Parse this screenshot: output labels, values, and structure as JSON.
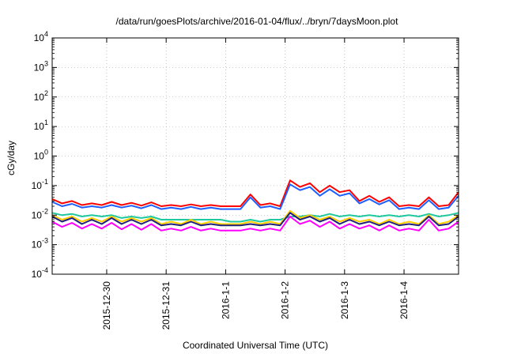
{
  "chart_data": {
    "type": "line",
    "title": "/data/run/goesPlots/archive/2016-01-04/flux/../bryn/7daysMoon.plot",
    "xlabel": "Coordinated Universal Time (UTC)",
    "ylabel": "cGy/day",
    "yscale": "log",
    "ylim": [
      0.0001,
      10000
    ],
    "xlim": [
      "2015-12-29T02:00",
      "2016-01-04T22:00"
    ],
    "grid": true,
    "legend": "none",
    "y_ticks": [
      {
        "base": "10",
        "exp": "-4"
      },
      {
        "base": "10",
        "exp": "-3"
      },
      {
        "base": "10",
        "exp": "-2"
      },
      {
        "base": "10",
        "exp": "-1"
      },
      {
        "base": "10",
        "exp": "0"
      },
      {
        "base": "10",
        "exp": "1"
      },
      {
        "base": "10",
        "exp": "2"
      },
      {
        "base": "10",
        "exp": "3"
      },
      {
        "base": "10",
        "exp": "4"
      }
    ],
    "x_ticks": [
      {
        "date": "2015-12-30",
        "label": "2015-12-30"
      },
      {
        "date": "2015-12-31",
        "label": "2015-12-31"
      },
      {
        "date": "2016-01-01",
        "label": "2016-1-1"
      },
      {
        "date": "2016-01-02",
        "label": "2016-1-2"
      },
      {
        "date": "2016-01-03",
        "label": "2016-1-3"
      },
      {
        "date": "2016-01-04",
        "label": "2016-1-4"
      }
    ],
    "x": [
      "2015-12-29T02:00",
      "2015-12-29T06:00",
      "2015-12-29T10:00",
      "2015-12-29T14:00",
      "2015-12-29T18:00",
      "2015-12-29T22:00",
      "2015-12-30T02:00",
      "2015-12-30T06:00",
      "2015-12-30T10:00",
      "2015-12-30T14:00",
      "2015-12-30T18:00",
      "2015-12-30T22:00",
      "2015-12-31T02:00",
      "2015-12-31T06:00",
      "2015-12-31T10:00",
      "2015-12-31T14:00",
      "2015-12-31T18:00",
      "2015-12-31T22:00",
      "2016-01-01T02:00",
      "2016-01-01T06:00",
      "2016-01-01T10:00",
      "2016-01-01T14:00",
      "2016-01-01T18:00",
      "2016-01-01T22:00",
      "2016-01-02T02:00",
      "2016-01-02T06:00",
      "2016-01-02T10:00",
      "2016-01-02T14:00",
      "2016-01-02T18:00",
      "2016-01-02T22:00",
      "2016-01-03T02:00",
      "2016-01-03T06:00",
      "2016-01-03T10:00",
      "2016-01-03T14:00",
      "2016-01-03T18:00",
      "2016-01-03T22:00",
      "2016-01-04T02:00",
      "2016-01-04T06:00",
      "2016-01-04T10:00",
      "2016-01-04T14:00",
      "2016-01-04T18:00",
      "2016-01-04T22:00"
    ],
    "series": [
      {
        "color": "#ff0000",
        "values": [
          0.035,
          0.025,
          0.03,
          0.022,
          0.025,
          0.022,
          0.028,
          0.022,
          0.026,
          0.021,
          0.027,
          0.02,
          0.022,
          0.02,
          0.023,
          0.02,
          0.022,
          0.02,
          0.02,
          0.02,
          0.05,
          0.022,
          0.025,
          0.02,
          0.15,
          0.09,
          0.12,
          0.06,
          0.1,
          0.06,
          0.07,
          0.03,
          0.045,
          0.028,
          0.04,
          0.02,
          0.022,
          0.02,
          0.04,
          0.02,
          0.022,
          0.06
        ]
      },
      {
        "color": "#1f5fff",
        "values": [
          0.028,
          0.02,
          0.024,
          0.018,
          0.02,
          0.018,
          0.022,
          0.018,
          0.021,
          0.017,
          0.022,
          0.016,
          0.018,
          0.016,
          0.019,
          0.016,
          0.018,
          0.016,
          0.016,
          0.016,
          0.04,
          0.018,
          0.02,
          0.016,
          0.11,
          0.07,
          0.09,
          0.045,
          0.075,
          0.045,
          0.055,
          0.025,
          0.035,
          0.023,
          0.032,
          0.016,
          0.018,
          0.016,
          0.032,
          0.016,
          0.018,
          0.045
        ]
      },
      {
        "color": "#20c8a0",
        "values": [
          0.012,
          0.01,
          0.011,
          0.009,
          0.01,
          0.009,
          0.01,
          0.008,
          0.009,
          0.008,
          0.009,
          0.007,
          0.007,
          0.007,
          0.007,
          0.007,
          0.007,
          0.007,
          0.006,
          0.006,
          0.007,
          0.006,
          0.007,
          0.007,
          0.009,
          0.009,
          0.01,
          0.009,
          0.011,
          0.009,
          0.01,
          0.009,
          0.01,
          0.009,
          0.01,
          0.009,
          0.01,
          0.009,
          0.011,
          0.009,
          0.01,
          0.012
        ]
      },
      {
        "color": "#ffd000",
        "values": [
          0.01,
          0.007,
          0.009,
          0.006,
          0.008,
          0.006,
          0.009,
          0.006,
          0.008,
          0.006,
          0.008,
          0.005,
          0.006,
          0.005,
          0.007,
          0.005,
          0.006,
          0.005,
          0.005,
          0.005,
          0.006,
          0.005,
          0.006,
          0.005,
          0.014,
          0.008,
          0.01,
          0.007,
          0.009,
          0.006,
          0.008,
          0.006,
          0.007,
          0.005,
          0.007,
          0.005,
          0.006,
          0.005,
          0.01,
          0.005,
          0.006,
          0.01
        ]
      },
      {
        "color": "#202080",
        "values": [
          0.009,
          0.006,
          0.008,
          0.005,
          0.007,
          0.005,
          0.008,
          0.005,
          0.007,
          0.005,
          0.007,
          0.0045,
          0.005,
          0.0045,
          0.006,
          0.0045,
          0.005,
          0.0045,
          0.0045,
          0.0045,
          0.005,
          0.0045,
          0.005,
          0.0045,
          0.012,
          0.007,
          0.009,
          0.006,
          0.008,
          0.005,
          0.007,
          0.005,
          0.006,
          0.0045,
          0.006,
          0.0045,
          0.005,
          0.0045,
          0.009,
          0.0045,
          0.005,
          0.009
        ]
      },
      {
        "color": "#ff00ff",
        "values": [
          0.006,
          0.004,
          0.0055,
          0.0035,
          0.005,
          0.0035,
          0.0055,
          0.0033,
          0.005,
          0.0032,
          0.005,
          0.003,
          0.0035,
          0.003,
          0.004,
          0.003,
          0.0035,
          0.003,
          0.003,
          0.003,
          0.0035,
          0.003,
          0.0035,
          0.003,
          0.009,
          0.005,
          0.0065,
          0.004,
          0.006,
          0.0035,
          0.005,
          0.0035,
          0.0045,
          0.003,
          0.0045,
          0.003,
          0.0035,
          0.003,
          0.007,
          0.003,
          0.0035,
          0.006
        ]
      }
    ]
  }
}
